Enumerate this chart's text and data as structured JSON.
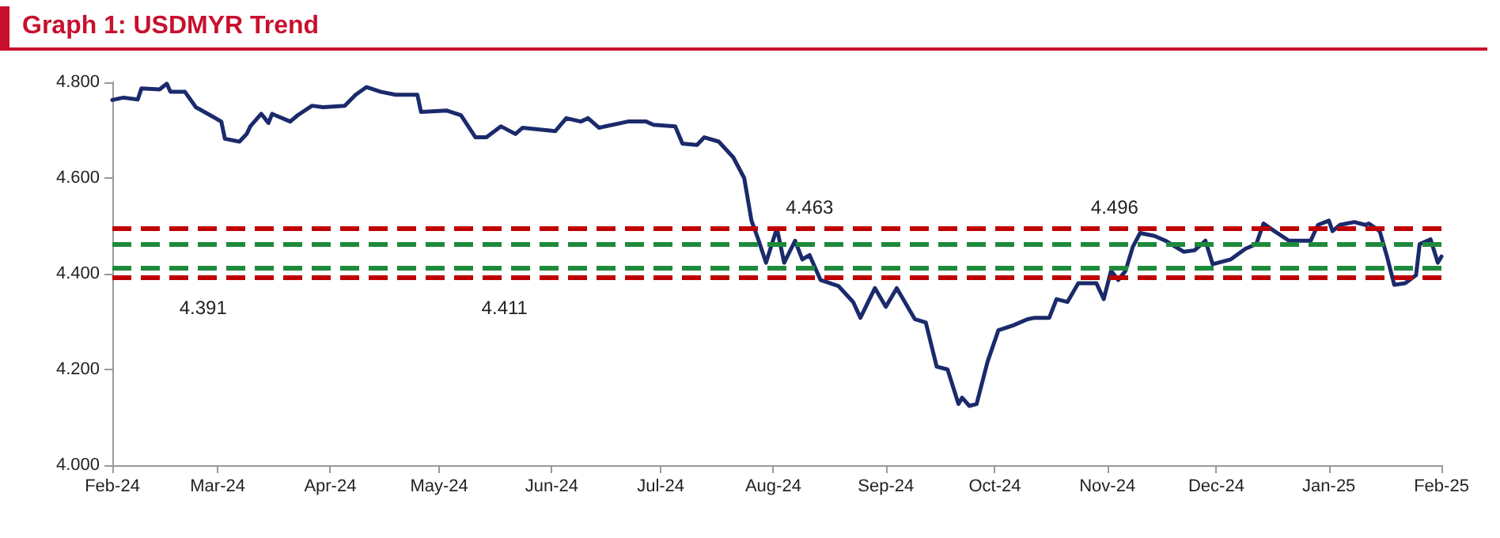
{
  "chart_data": {
    "type": "line",
    "title": "Graph 1: USDMYR Trend",
    "x": [
      "2024-02-01",
      "2024-02-04",
      "2024-02-08",
      "2024-02-09",
      "2024-02-14",
      "2024-02-16",
      "2024-02-17",
      "2024-02-21",
      "2024-02-24",
      "2024-02-28",
      "2024-03-02",
      "2024-03-03",
      "2024-03-07",
      "2024-03-09",
      "2024-03-10",
      "2024-03-13",
      "2024-03-15",
      "2024-03-16",
      "2024-03-21",
      "2024-03-23",
      "2024-03-27",
      "2024-03-30",
      "2024-04-05",
      "2024-04-08",
      "2024-04-11",
      "2024-04-15",
      "2024-04-19",
      "2024-04-25",
      "2024-04-26",
      "2024-05-03",
      "2024-05-07",
      "2024-05-11",
      "2024-05-14",
      "2024-05-18",
      "2024-05-22",
      "2024-05-24",
      "2024-06-02",
      "2024-06-05",
      "2024-06-09",
      "2024-06-11",
      "2024-06-14",
      "2024-06-22",
      "2024-06-27",
      "2024-06-29",
      "2024-07-05",
      "2024-07-07",
      "2024-07-11",
      "2024-07-13",
      "2024-07-17",
      "2024-07-21",
      "2024-07-24",
      "2024-07-26",
      "2024-07-28",
      "2024-07-30",
      "2024-08-02",
      "2024-08-04",
      "2024-08-07",
      "2024-08-09",
      "2024-08-11",
      "2024-08-14",
      "2024-08-19",
      "2024-08-23",
      "2024-08-25",
      "2024-08-29",
      "2024-09-01",
      "2024-09-04",
      "2024-09-09",
      "2024-09-12",
      "2024-09-15",
      "2024-09-18",
      "2024-09-21",
      "2024-09-22",
      "2024-09-24",
      "2024-09-26",
      "2024-09-29",
      "2024-10-02",
      "2024-10-06",
      "2024-10-10",
      "2024-10-12",
      "2024-10-16",
      "2024-10-18",
      "2024-10-21",
      "2024-10-24",
      "2024-10-29",
      "2024-10-31",
      "2024-11-02",
      "2024-11-04",
      "2024-11-06",
      "2024-11-08",
      "2024-11-10",
      "2024-11-14",
      "2024-11-17",
      "2024-11-22",
      "2024-11-25",
      "2024-11-28",
      "2024-11-30",
      "2024-12-05",
      "2024-12-09",
      "2024-12-12",
      "2024-12-14",
      "2024-12-17",
      "2024-12-21",
      "2024-12-27",
      "2024-12-29",
      "2025-01-01",
      "2025-01-02",
      "2025-01-04",
      "2025-01-08",
      "2025-01-11",
      "2025-01-12",
      "2025-01-15",
      "2025-01-17",
      "2025-01-19",
      "2025-01-22",
      "2025-01-25",
      "2025-01-26",
      "2025-01-29",
      "2025-01-31",
      "2025-02-01"
    ],
    "series": [
      {
        "color": "#1b2a6b",
        "values": [
          4.763,
          4.768,
          4.764,
          4.787,
          4.785,
          4.797,
          4.78,
          4.78,
          4.748,
          4.731,
          4.718,
          4.682,
          4.676,
          4.692,
          4.708,
          4.734,
          4.715,
          4.734,
          4.718,
          4.731,
          4.751,
          4.748,
          4.751,
          4.774,
          4.79,
          4.78,
          4.774,
          4.774,
          4.738,
          4.741,
          4.731,
          4.685,
          4.685,
          4.708,
          4.692,
          4.705,
          4.698,
          4.725,
          4.718,
          4.725,
          4.705,
          4.718,
          4.718,
          4.711,
          4.708,
          4.672,
          4.669,
          4.685,
          4.676,
          4.643,
          4.6,
          4.511,
          4.469,
          4.423,
          4.495,
          4.423,
          4.469,
          4.43,
          4.439,
          4.387,
          4.374,
          4.341,
          4.308,
          4.37,
          4.331,
          4.37,
          4.305,
          4.298,
          4.206,
          4.2,
          4.128,
          4.141,
          4.124,
          4.128,
          4.216,
          4.282,
          4.292,
          4.305,
          4.308,
          4.308,
          4.347,
          4.341,
          4.38,
          4.38,
          4.347,
          4.406,
          4.387,
          4.406,
          4.456,
          4.485,
          4.479,
          4.469,
          4.446,
          4.449,
          4.469,
          4.42,
          4.43,
          4.452,
          4.462,
          4.505,
          4.489,
          4.469,
          4.469,
          4.502,
          4.511,
          4.489,
          4.502,
          4.508,
          4.502,
          4.505,
          4.489,
          4.436,
          4.377,
          4.38,
          4.397,
          4.462,
          4.472,
          4.423,
          4.436
        ]
      }
    ],
    "xlim": [
      "2024-02-01",
      "2025-02-01"
    ],
    "xticks": [
      {
        "value": "2024-02-01",
        "label": "Feb-24"
      },
      {
        "value": "2024-03-01",
        "label": "Mar-24"
      },
      {
        "value": "2024-04-01",
        "label": "Apr-24"
      },
      {
        "value": "2024-05-01",
        "label": "May-24"
      },
      {
        "value": "2024-06-01",
        "label": "Jun-24"
      },
      {
        "value": "2024-07-01",
        "label": "Jul-24"
      },
      {
        "value": "2024-08-01",
        "label": "Aug-24"
      },
      {
        "value": "2024-09-01",
        "label": "Sep-24"
      },
      {
        "value": "2024-10-01",
        "label": "Oct-24"
      },
      {
        "value": "2024-11-01",
        "label": "Nov-24"
      },
      {
        "value": "2024-12-01",
        "label": "Dec-24"
      },
      {
        "value": "2025-01-01",
        "label": "Jan-25"
      },
      {
        "value": "2025-02-01",
        "label": "Feb-25"
      }
    ],
    "ylim": [
      4.0,
      4.8
    ],
    "yticks": [
      {
        "value": 4.0,
        "label": "4.000"
      },
      {
        "value": 4.2,
        "label": "4.200"
      },
      {
        "value": 4.4,
        "label": "4.400"
      },
      {
        "value": 4.6,
        "label": "4.600"
      },
      {
        "value": 4.8,
        "label": "4.800"
      }
    ],
    "ref_lines": [
      {
        "axis": "y",
        "value": 4.496,
        "color": "#c00000",
        "line_style": "dashed"
      },
      {
        "axis": "y",
        "value": 4.463,
        "color": "#1e8a3c",
        "line_style": "dashed"
      },
      {
        "axis": "y",
        "value": 4.411,
        "color": "#1e8a3c",
        "line_style": "dashed"
      },
      {
        "axis": "y",
        "value": 4.391,
        "color": "#c00000",
        "line_style": "dashed"
      }
    ],
    "annotations": [
      {
        "text": "4.463",
        "x": "2024-08-11",
        "y": 4.496
      },
      {
        "text": "4.496",
        "x": "2024-11-03",
        "y": 4.496
      },
      {
        "text": "4.391",
        "x": "2024-02-26",
        "y": 4.391
      },
      {
        "text": "4.411",
        "x": "2024-05-19",
        "y": 4.391
      }
    ],
    "marker": "none",
    "line_style": "solid",
    "grid": false
  }
}
